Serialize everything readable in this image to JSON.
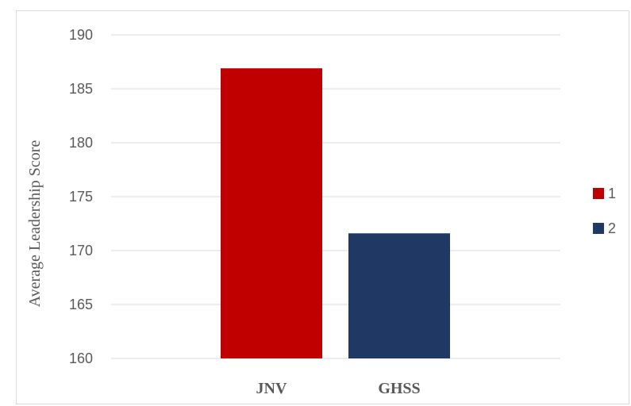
{
  "chart_data": {
    "type": "bar",
    "categories": [
      "JNV",
      "GHSS"
    ],
    "series": [
      {
        "name": "1",
        "values": [
          186.9,
          null
        ],
        "color": "#c00000"
      },
      {
        "name": "2",
        "values": [
          null,
          171.6
        ],
        "color": "#203864"
      }
    ],
    "title": "",
    "xlabel": "",
    "ylabel": "Average Leadership Score",
    "ylim": [
      160,
      190
    ],
    "yticks": [
      "160",
      "165",
      "170",
      "175",
      "180",
      "185",
      "190"
    ],
    "grid": true,
    "legend_position": "right"
  }
}
